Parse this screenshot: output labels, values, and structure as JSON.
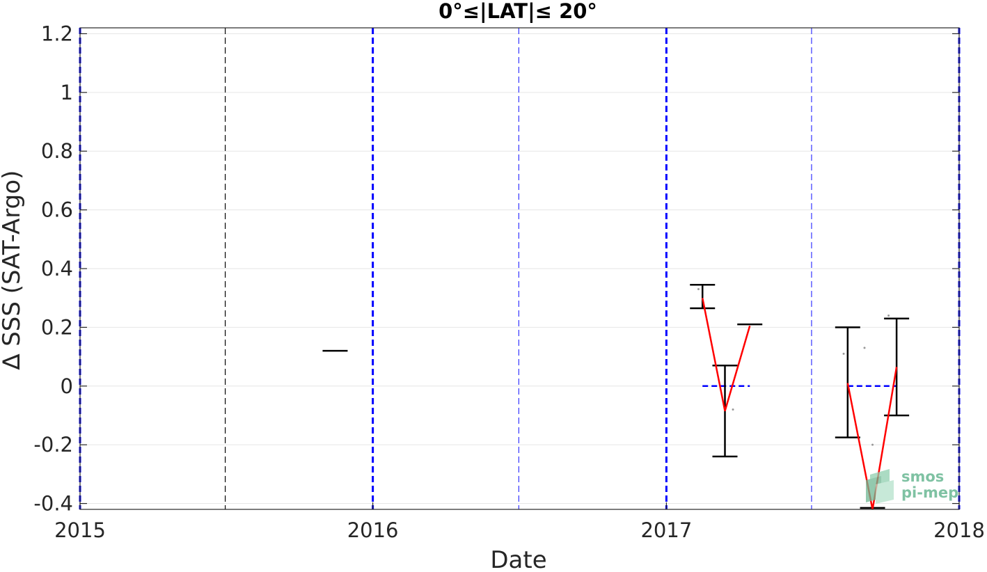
{
  "chart_data": {
    "type": "line",
    "title": "0°≤|LAT|≤ 20°",
    "xlabel": "Date",
    "ylabel": "∆ SSS (SAT-Argo)",
    "xlim": [
      "2015-01-01",
      "2018-01-01"
    ],
    "ylim": [
      -0.42,
      1.22
    ],
    "x_ticks": [
      "2015",
      "2016",
      "2017",
      "2018"
    ],
    "y_ticks": [
      -0.4,
      -0.2,
      0,
      0.2,
      0.4,
      0.6,
      0.8,
      1,
      1.2
    ],
    "y_tick_labels": [
      "-0.4",
      "-0.2",
      "0",
      "0.2",
      "0.4",
      "0.6",
      "0.8",
      "1",
      "1.2"
    ],
    "grid": true,
    "year_lines": [
      "2015-01-01",
      "2016-01-01",
      "2017-01-01",
      "2018-01-01"
    ],
    "midyear_lines": [
      "2015-07-01",
      "2016-07-01",
      "2017-07-01"
    ],
    "mean_line": {
      "color": "#ff0000",
      "x": [
        "2017-02-15",
        "2017-03-15",
        "2017-04-15",
        "2017-08-15",
        "2017-09-15",
        "2017-10-15"
      ],
      "y": [
        0.3,
        -0.085,
        0.205,
        0.01,
        -0.42,
        0.065
      ]
    },
    "error_bars": [
      {
        "x": "2015-11-15",
        "low": 0.12,
        "high": 0.12
      },
      {
        "x": "2017-02-15",
        "low": 0.265,
        "high": 0.345
      },
      {
        "x": "2017-03-15",
        "low": -0.24,
        "high": 0.07
      },
      {
        "x": "2017-04-15",
        "low": 0.21,
        "high": 0.21
      },
      {
        "x": "2017-08-15",
        "low": -0.175,
        "high": 0.2
      },
      {
        "x": "2017-09-15",
        "low": -0.415,
        "high": -0.415
      },
      {
        "x": "2017-10-15",
        "low": -0.1,
        "high": 0.23
      }
    ],
    "zero_segments": [
      {
        "x_start": "2017-02-15",
        "x_end": "2017-04-15",
        "y": 0
      },
      {
        "x_start": "2017-08-15",
        "x_end": "2017-10-15",
        "y": 0
      }
    ],
    "scatter_points": {
      "color": "#999999",
      "x": [
        "2017-02-10",
        "2017-03-25",
        "2017-08-10",
        "2017-09-05",
        "2017-09-15",
        "2017-10-05"
      ],
      "y": [
        0.33,
        -0.08,
        0.11,
        0.13,
        -0.2,
        0.24
      ]
    },
    "colors": {
      "year_line": "#0000ff",
      "midyear_line_2015": "#000000",
      "midyear_line": "#3333ff",
      "error_bar": "#000000",
      "grid": "#e6e6e6"
    }
  },
  "logo": {
    "line1": "smos",
    "line2": "pi-mep",
    "color": "#7fc2a3"
  }
}
